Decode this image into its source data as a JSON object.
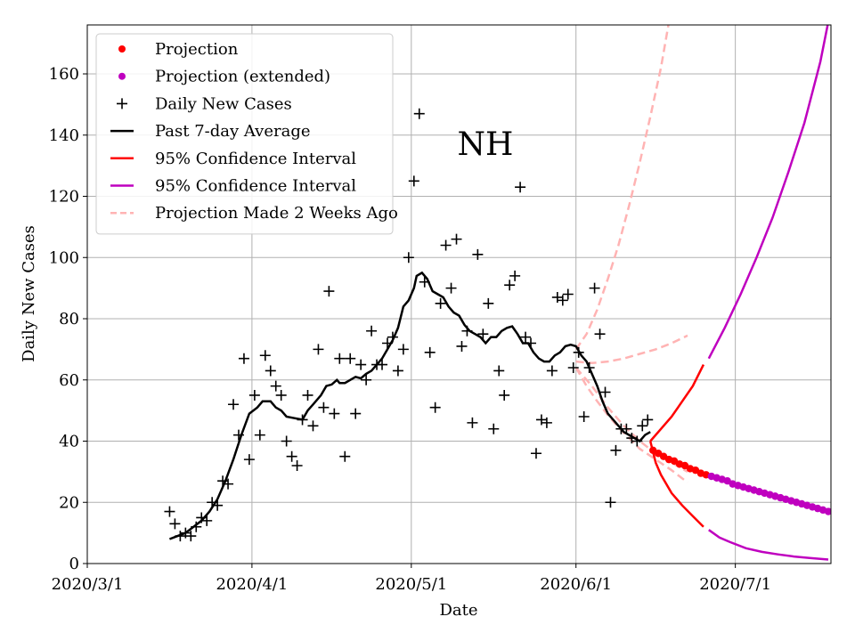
{
  "chart_data": {
    "type": "line",
    "title": "NH",
    "xlabel": "Date",
    "ylabel": "Daily New Cases",
    "x_axis": {
      "unit": "days since 2020-03-01",
      "range": [
        0,
        140
      ],
      "ticks": [
        {
          "day": 0,
          "label": "2020/3/1"
        },
        {
          "day": 31,
          "label": "2020/4/1"
        },
        {
          "day": 61,
          "label": "2020/5/1"
        },
        {
          "day": 92,
          "label": "2020/6/1"
        },
        {
          "day": 122,
          "label": "2020/7/1"
        }
      ]
    },
    "y_axis": {
      "range": [
        0,
        176
      ],
      "ticks": [
        0,
        20,
        40,
        60,
        80,
        100,
        120,
        140,
        160
      ]
    },
    "grid": true,
    "legend": {
      "placement": "top-left",
      "entries": [
        {
          "label": "Projection",
          "marker": "dot",
          "color": "#ff0000"
        },
        {
          "label": "Projection (extended)",
          "marker": "dot",
          "color": "#bf00bf"
        },
        {
          "label": "Daily New Cases",
          "marker": "plus",
          "color": "#000000"
        },
        {
          "label": "Past 7-day Average",
          "marker": "line",
          "color": "#000000"
        },
        {
          "label": "95% Confidence Interval",
          "marker": "line",
          "color": "#ff0000"
        },
        {
          "label": "95% Confidence Interval",
          "marker": "line",
          "color": "#bf00bf"
        },
        {
          "label": "Projection Made 2 Weeks Ago",
          "marker": "dashed",
          "color": "#ffb3b3"
        }
      ]
    },
    "series": [
      {
        "name": "Daily New Cases",
        "style": "plus",
        "color": "#000000",
        "points": [
          [
            15.5,
            17
          ],
          [
            16.5,
            13
          ],
          [
            17.5,
            9
          ],
          [
            18.5,
            10
          ],
          [
            19.5,
            9
          ],
          [
            20.5,
            12
          ],
          [
            21.5,
            15
          ],
          [
            22.5,
            14
          ],
          [
            23.5,
            20
          ],
          [
            24.5,
            19
          ],
          [
            25.5,
            27
          ],
          [
            26.5,
            26
          ],
          [
            27.5,
            52
          ],
          [
            28.5,
            42
          ],
          [
            29.5,
            67
          ],
          [
            30.5,
            34
          ],
          [
            31.5,
            55
          ],
          [
            32.5,
            42
          ],
          [
            33.5,
            68
          ],
          [
            34.5,
            63
          ],
          [
            35.5,
            58
          ],
          [
            36.5,
            55
          ],
          [
            37.5,
            40
          ],
          [
            38.5,
            35
          ],
          [
            39.5,
            32
          ],
          [
            40.5,
            47
          ],
          [
            41.5,
            55
          ],
          [
            42.5,
            45
          ],
          [
            43.5,
            70
          ],
          [
            44.5,
            51
          ],
          [
            45.5,
            89
          ],
          [
            46.5,
            49
          ],
          [
            47.5,
            67
          ],
          [
            48.5,
            35
          ],
          [
            49.5,
            67
          ],
          [
            50.5,
            49
          ],
          [
            51.5,
            65
          ],
          [
            52.5,
            60
          ],
          [
            53.5,
            76
          ],
          [
            54.5,
            65
          ],
          [
            55.5,
            65
          ],
          [
            56.5,
            72
          ],
          [
            57.5,
            74
          ],
          [
            58.5,
            63
          ],
          [
            59.5,
            70
          ],
          [
            60.5,
            100
          ],
          [
            61.5,
            125
          ],
          [
            62.5,
            147
          ],
          [
            63.5,
            92
          ],
          [
            64.5,
            69
          ],
          [
            65.5,
            51
          ],
          [
            66.5,
            85
          ],
          [
            67.5,
            104
          ],
          [
            68.5,
            90
          ],
          [
            69.5,
            106
          ],
          [
            70.5,
            71
          ],
          [
            71.5,
            76
          ],
          [
            72.5,
            46
          ],
          [
            73.5,
            101
          ],
          [
            74.5,
            75
          ],
          [
            75.5,
            85
          ],
          [
            76.5,
            44
          ],
          [
            77.5,
            63
          ],
          [
            78.5,
            55
          ],
          [
            79.5,
            91
          ],
          [
            80.5,
            94
          ],
          [
            81.5,
            123
          ],
          [
            82.5,
            74
          ],
          [
            83.5,
            72
          ],
          [
            84.5,
            36
          ],
          [
            85.5,
            47
          ],
          [
            86.5,
            46
          ],
          [
            87.5,
            63
          ],
          [
            88.5,
            87
          ],
          [
            89.5,
            86
          ],
          [
            90.5,
            88
          ],
          [
            91.5,
            64
          ],
          [
            92.5,
            69
          ],
          [
            93.5,
            48
          ],
          [
            94.5,
            64
          ],
          [
            95.5,
            90
          ],
          [
            96.5,
            75
          ],
          [
            97.5,
            56
          ],
          [
            98.5,
            20
          ],
          [
            99.5,
            37
          ],
          [
            100.5,
            44
          ],
          [
            101.5,
            44
          ],
          [
            102.5,
            41
          ],
          [
            103.5,
            40
          ],
          [
            104.5,
            45
          ],
          [
            105.5,
            47
          ]
        ]
      },
      {
        "name": "Past 7-day Average",
        "style": "line",
        "color": "#000000",
        "points": [
          [
            15.5,
            8
          ],
          [
            17,
            9
          ],
          [
            18.5,
            10
          ],
          [
            20,
            12
          ],
          [
            21.5,
            14
          ],
          [
            23,
            17
          ],
          [
            24.5,
            21
          ],
          [
            26,
            27
          ],
          [
            27.5,
            34
          ],
          [
            29,
            42
          ],
          [
            30.5,
            49
          ],
          [
            32,
            51
          ],
          [
            33,
            53
          ],
          [
            34.5,
            53
          ],
          [
            35.5,
            51
          ],
          [
            36.5,
            50
          ],
          [
            37.5,
            48
          ],
          [
            39,
            47.5
          ],
          [
            40.5,
            47
          ],
          [
            41.5,
            50
          ],
          [
            42.5,
            52
          ],
          [
            44,
            55
          ],
          [
            45,
            58
          ],
          [
            46,
            58.5
          ],
          [
            47,
            60
          ],
          [
            47.5,
            59
          ],
          [
            48.5,
            59
          ],
          [
            49.5,
            60
          ],
          [
            50.5,
            61
          ],
          [
            51.5,
            60.5
          ],
          [
            52.5,
            62
          ],
          [
            53.5,
            63
          ],
          [
            54.5,
            65
          ],
          [
            55.5,
            67
          ],
          [
            56.5,
            70
          ],
          [
            57.5,
            73
          ],
          [
            58.5,
            77
          ],
          [
            59.5,
            84
          ],
          [
            60.5,
            86
          ],
          [
            61.5,
            90
          ],
          [
            62,
            94
          ],
          [
            63,
            95
          ],
          [
            64,
            93
          ],
          [
            65,
            89
          ],
          [
            66,
            88
          ],
          [
            67,
            87
          ],
          [
            68,
            84
          ],
          [
            69,
            82
          ],
          [
            70,
            81
          ],
          [
            71,
            78
          ],
          [
            72,
            76
          ],
          [
            73,
            75
          ],
          [
            74,
            74
          ],
          [
            75,
            72
          ],
          [
            76,
            74
          ],
          [
            77,
            74
          ],
          [
            78,
            76
          ],
          [
            79,
            77
          ],
          [
            80,
            77.5
          ],
          [
            81,
            75
          ],
          [
            82,
            72
          ],
          [
            83,
            72
          ],
          [
            84,
            69
          ],
          [
            85,
            67
          ],
          [
            86,
            66
          ],
          [
            87,
            66
          ],
          [
            88,
            68
          ],
          [
            89,
            69
          ],
          [
            90,
            71
          ],
          [
            91,
            71.5
          ],
          [
            92,
            71
          ],
          [
            93,
            68
          ],
          [
            94,
            66
          ],
          [
            95,
            62
          ],
          [
            96,
            58
          ],
          [
            97,
            53
          ],
          [
            98,
            49
          ],
          [
            99,
            47
          ],
          [
            100,
            45
          ],
          [
            101,
            43
          ],
          [
            102,
            42
          ],
          [
            103,
            41
          ],
          [
            104,
            40
          ],
          [
            105,
            42
          ],
          [
            106,
            43
          ]
        ]
      },
      {
        "name": "Projection",
        "style": "dot",
        "color": "#ff0000",
        "points": [
          [
            106.5,
            37
          ],
          [
            107.5,
            36
          ],
          [
            108.5,
            35
          ],
          [
            109.5,
            34
          ],
          [
            110.5,
            33.5
          ],
          [
            111.5,
            32.5
          ],
          [
            112.5,
            32
          ],
          [
            113.5,
            31
          ],
          [
            114.5,
            30.5
          ],
          [
            115.5,
            29.5
          ],
          [
            116.5,
            29
          ]
        ]
      },
      {
        "name": "Projection (extended)",
        "style": "dot",
        "color": "#bf00bf",
        "points": [
          [
            117.5,
            28.5
          ],
          [
            118.5,
            28
          ],
          [
            119.5,
            27.5
          ],
          [
            120.5,
            27
          ],
          [
            121.5,
            26
          ],
          [
            122.5,
            25.5
          ],
          [
            123.5,
            25
          ],
          [
            124.5,
            24.5
          ],
          [
            125.5,
            24
          ],
          [
            126.5,
            23.5
          ],
          [
            127.5,
            23
          ],
          [
            128.5,
            22.5
          ],
          [
            129.5,
            22
          ],
          [
            130.5,
            21.5
          ],
          [
            131.5,
            21
          ],
          [
            132.5,
            20.5
          ],
          [
            133.5,
            20
          ],
          [
            134.5,
            19.5
          ],
          [
            135.5,
            19
          ],
          [
            136.5,
            18.5
          ],
          [
            137.5,
            18
          ],
          [
            138.5,
            17.5
          ],
          [
            139.5,
            17
          ]
        ]
      },
      {
        "name": "95% Confidence Interval",
        "style": "line",
        "color": "#ff0000",
        "points": [
          [
            106,
            40
          ],
          [
            108,
            44
          ],
          [
            110,
            48
          ],
          [
            112,
            53
          ],
          [
            114,
            58
          ],
          [
            116,
            65
          ]
        ]
      },
      {
        "name": "95% Confidence Interval",
        "style": "line",
        "color": "#ff0000",
        "points": [
          [
            106,
            40
          ],
          [
            107,
            33
          ],
          [
            108,
            29
          ],
          [
            110,
            23
          ],
          [
            112,
            19
          ],
          [
            114,
            15.5
          ],
          [
            116,
            12
          ]
        ]
      },
      {
        "name": "95% Confidence Interval",
        "style": "line",
        "color": "#bf00bf",
        "points": [
          [
            117,
            67
          ],
          [
            120,
            77
          ],
          [
            123,
            88
          ],
          [
            126,
            100
          ],
          [
            129,
            113
          ],
          [
            132,
            128
          ],
          [
            135,
            144
          ],
          [
            138,
            164
          ],
          [
            139.5,
            177
          ]
        ]
      },
      {
        "name": "95% Confidence Interval",
        "style": "line",
        "color": "#bf00bf",
        "points": [
          [
            117,
            11
          ],
          [
            119,
            8.5
          ],
          [
            121,
            7
          ],
          [
            124,
            5
          ],
          [
            127,
            3.8
          ],
          [
            130,
            3
          ],
          [
            133,
            2.3
          ],
          [
            136,
            1.8
          ],
          [
            139.5,
            1.3
          ]
        ]
      },
      {
        "name": "Projection Made 2 Weeks Ago",
        "style": "dashed",
        "color": "#ffb3b3",
        "points": [
          [
            92,
            70
          ],
          [
            94,
            75
          ],
          [
            96,
            83
          ],
          [
            98,
            93
          ],
          [
            100,
            104
          ],
          [
            102,
            117
          ],
          [
            104,
            131
          ],
          [
            106,
            146
          ],
          [
            108,
            162
          ],
          [
            109.5,
            177
          ]
        ]
      },
      {
        "name": "Projection Made 2 Weeks Ago",
        "style": "dashed",
        "color": "#ffb3b3",
        "points": [
          [
            92,
            66
          ],
          [
            95,
            65.5
          ],
          [
            98,
            66
          ],
          [
            101,
            67
          ],
          [
            104,
            68.5
          ],
          [
            107,
            70
          ],
          [
            110,
            72
          ],
          [
            113,
            74.5
          ]
        ]
      },
      {
        "name": "Projection Made 2 Weeks Ago",
        "style": "dashed",
        "color": "#ffb3b3",
        "points": [
          [
            92,
            64
          ],
          [
            94,
            58
          ],
          [
            96,
            53
          ],
          [
            98,
            48.5
          ],
          [
            100,
            44.5
          ],
          [
            102,
            41
          ],
          [
            104,
            37.5
          ],
          [
            107,
            34
          ],
          [
            110,
            30.5
          ],
          [
            113,
            26.5
          ]
        ]
      },
      {
        "name": "Projection Made 2 Weeks Ago",
        "style": "dashed",
        "color": "#ffb3b3",
        "points": [
          [
            92,
            64
          ],
          [
            95,
            58
          ],
          [
            98,
            51
          ],
          [
            101,
            45
          ],
          [
            104,
            40
          ],
          [
            107,
            36
          ],
          [
            110,
            33
          ],
          [
            113,
            30
          ]
        ]
      }
    ]
  }
}
